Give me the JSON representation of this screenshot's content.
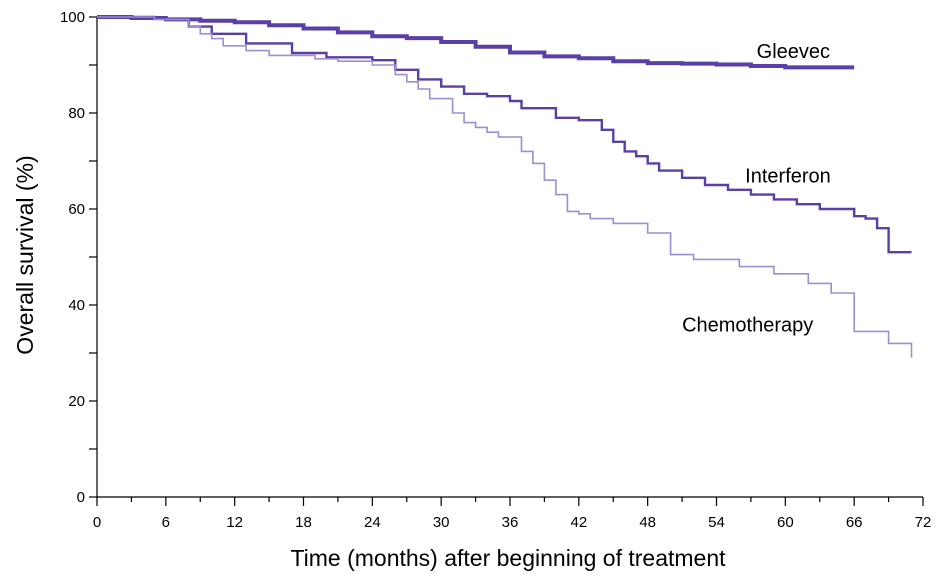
{
  "chart_data": {
    "type": "line",
    "title": "",
    "xlabel": "Time (months) after beginning of treatment",
    "ylabel": "Overall survival (%)",
    "xlim": [
      0,
      72
    ],
    "ylim": [
      0,
      100
    ],
    "x_ticks": [
      0,
      6,
      12,
      18,
      24,
      30,
      36,
      42,
      48,
      54,
      60,
      66,
      72
    ],
    "y_ticks": [
      0,
      20,
      40,
      60,
      80,
      100
    ],
    "grid": false,
    "legend": "none",
    "series": [
      {
        "name": "Gleevec",
        "color": "#5a3fa6",
        "line_width": 4,
        "step": true,
        "x": [
          0,
          3,
          6,
          9,
          12,
          15,
          18,
          21,
          24,
          27,
          30,
          33,
          36,
          39,
          42,
          45,
          48,
          51,
          54,
          57,
          60,
          63,
          66
        ],
        "y": [
          100,
          99.8,
          99.5,
          99.2,
          98.9,
          98.3,
          97.6,
          96.8,
          96.0,
          95.6,
          94.8,
          93.8,
          92.6,
          91.8,
          91.4,
          90.8,
          90.4,
          90.3,
          90.1,
          89.8,
          89.5,
          89.5,
          89.5
        ]
      },
      {
        "name": "Interferon",
        "color": "#5a3fa6",
        "line_width": 2.4,
        "step": true,
        "x": [
          0,
          5,
          8,
          10,
          13,
          17,
          20,
          24,
          26,
          28,
          30,
          32,
          34,
          36,
          37,
          40,
          42,
          44,
          45,
          46,
          47,
          48,
          49,
          51,
          53,
          55,
          57,
          59,
          61,
          63,
          66,
          67,
          68,
          69,
          71
        ],
        "y": [
          100,
          99.6,
          98,
          96.5,
          94.5,
          92.5,
          91.6,
          91,
          89,
          87,
          85.5,
          84,
          83.5,
          82.5,
          81,
          79,
          78.5,
          76.5,
          74,
          72,
          71,
          69.5,
          68,
          66.5,
          65,
          64,
          63,
          62,
          61,
          60,
          58.5,
          58,
          56,
          51,
          51
        ]
      },
      {
        "name": "Chemotherapy",
        "color": "#9a8fd0",
        "line_width": 1.6,
        "step": true,
        "x": [
          0,
          5,
          8,
          9,
          10,
          11,
          13,
          15,
          19,
          21,
          24,
          26,
          27,
          28,
          29,
          31,
          32,
          33,
          34,
          35,
          37,
          38,
          39,
          40,
          41,
          42,
          43,
          45,
          48,
          50,
          52,
          56,
          59,
          62,
          64,
          66,
          69,
          71
        ],
        "y": [
          100,
          99.5,
          98,
          96.5,
          95.5,
          94,
          93,
          92,
          91.3,
          90.8,
          90,
          88,
          86.5,
          85,
          83,
          80,
          78,
          77,
          76,
          75,
          72,
          69.5,
          66,
          63,
          59.5,
          59,
          58,
          57,
          55,
          50.5,
          49.5,
          48,
          46.5,
          44.5,
          42.5,
          34.5,
          32,
          29
        ]
      }
    ],
    "annotations": [
      {
        "text": "Gleevec",
        "series": "Gleevec"
      },
      {
        "text": "Interferon",
        "series": "Interferon"
      },
      {
        "text": "Chemotherapy",
        "series": "Chemotherapy"
      }
    ]
  }
}
